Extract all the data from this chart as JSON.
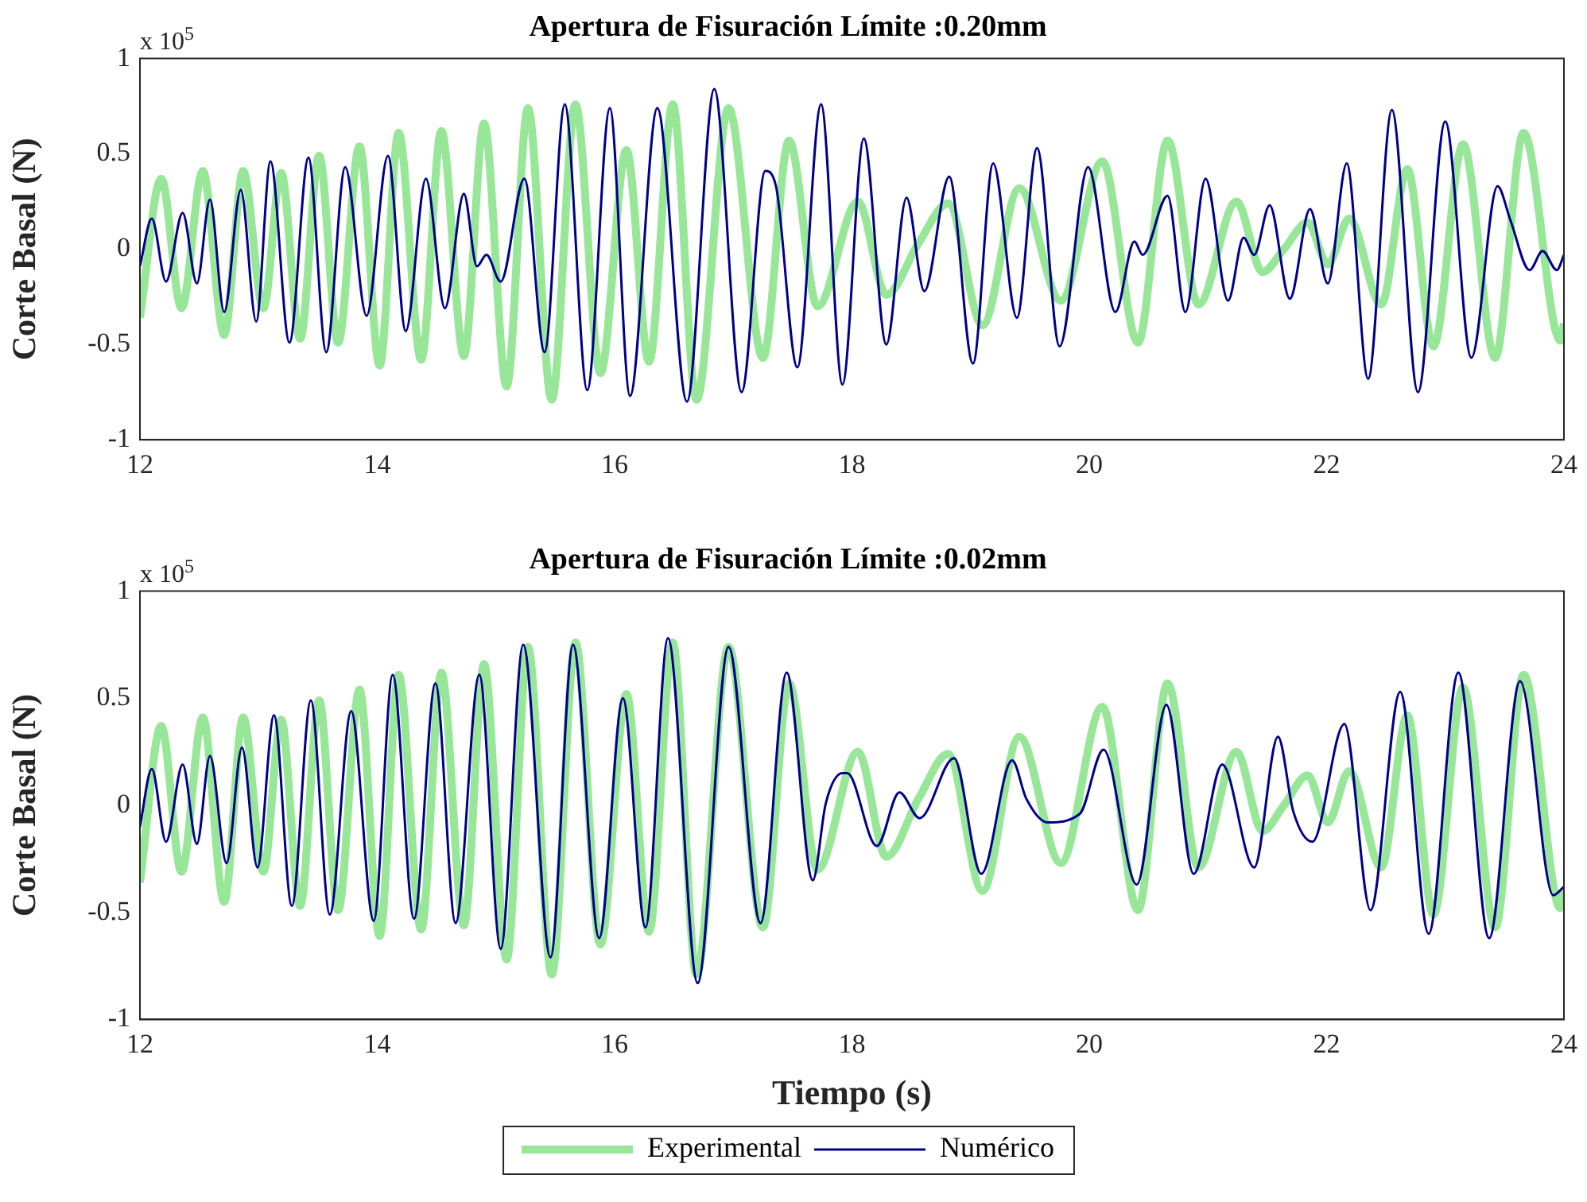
{
  "chart_data": [
    {
      "type": "line",
      "title": "Apertura de Fisuración Límite :0.20mm",
      "ylabel": "Corte Basal (N)",
      "annotations": [
        "x 10$^{5}$"
      ],
      "xlim": [
        12,
        24
      ],
      "xticks": [
        12,
        14,
        16,
        18,
        20,
        22,
        24
      ],
      "ylim": [
        -1,
        1
      ],
      "yticks": [
        -1,
        -0.5,
        0,
        0.5,
        1
      ],
      "series": [
        {
          "color": "#98e698",
          "x": [
            12.0,
            12.18,
            12.35,
            12.53,
            12.71,
            12.87,
            13.04,
            13.19,
            13.35,
            13.51,
            13.67,
            13.85,
            14.02,
            14.18,
            14.37,
            14.54,
            14.73,
            14.9,
            15.09,
            15.27,
            15.47,
            15.67,
            15.88,
            16.1,
            16.29,
            16.49,
            16.69,
            16.96,
            17.25,
            17.47,
            17.71,
            18.05,
            18.29,
            18.56,
            18.81,
            19.1,
            19.41,
            19.76,
            20.11,
            20.41,
            20.66,
            20.92,
            21.24,
            21.46,
            21.64,
            21.84,
            22.01,
            22.19,
            22.46,
            22.68,
            22.9,
            23.15,
            23.42,
            23.66,
            23.97,
            24.0
          ],
          "values": [
            -0.36,
            0.37,
            -0.31,
            0.41,
            -0.45,
            0.41,
            -0.31,
            0.4,
            -0.47,
            0.49,
            -0.49,
            0.54,
            -0.61,
            0.61,
            -0.58,
            0.62,
            -0.56,
            0.66,
            -0.72,
            0.74,
            -0.79,
            0.76,
            -0.65,
            0.52,
            -0.59,
            0.76,
            -0.79,
            0.74,
            -0.57,
            0.57,
            -0.3,
            0.25,
            -0.24,
            0.03,
            0.24,
            -0.4,
            0.32,
            -0.27,
            0.46,
            -0.49,
            0.57,
            -0.29,
            0.25,
            -0.12,
            0.0,
            0.14,
            -0.08,
            0.16,
            -0.29,
            0.42,
            -0.51,
            0.55,
            -0.57,
            0.61,
            -0.48,
            -0.39
          ]
        },
        {
          "color": "#00008b",
          "x": [
            12.0,
            12.1,
            12.22,
            12.36,
            12.48,
            12.59,
            12.71,
            12.85,
            12.98,
            13.1,
            13.26,
            13.42,
            13.57,
            13.73,
            13.91,
            14.09,
            14.24,
            14.41,
            14.57,
            14.73,
            14.84,
            14.92,
            15.04,
            15.24,
            15.41,
            15.58,
            15.77,
            15.96,
            16.13,
            16.36,
            16.61,
            16.84,
            17.07,
            17.27,
            17.36,
            17.54,
            17.74,
            17.92,
            18.1,
            18.29,
            18.46,
            18.61,
            18.82,
            19.02,
            19.19,
            19.39,
            19.56,
            19.75,
            19.99,
            20.22,
            20.38,
            20.45,
            20.66,
            20.81,
            20.98,
            21.17,
            21.3,
            21.39,
            21.52,
            21.69,
            21.86,
            22.01,
            22.17,
            22.35,
            22.55,
            22.77,
            23.0,
            23.22,
            23.44,
            23.55,
            23.71,
            23.82,
            23.94,
            24.0
          ],
          "values": [
            -0.09,
            0.16,
            -0.17,
            0.19,
            -0.18,
            0.26,
            -0.33,
            0.31,
            -0.38,
            0.46,
            -0.49,
            0.48,
            -0.54,
            0.43,
            -0.35,
            0.49,
            -0.43,
            0.37,
            -0.31,
            0.29,
            -0.09,
            -0.03,
            -0.17,
            0.37,
            -0.54,
            0.76,
            -0.74,
            0.74,
            -0.77,
            0.74,
            -0.8,
            0.84,
            -0.75,
            0.41,
            0.33,
            -0.62,
            0.76,
            -0.71,
            0.58,
            -0.5,
            0.27,
            -0.22,
            0.38,
            -0.6,
            0.45,
            -0.36,
            0.53,
            -0.51,
            0.43,
            -0.33,
            0.04,
            -0.03,
            0.28,
            -0.33,
            0.37,
            -0.27,
            0.06,
            -0.03,
            0.23,
            -0.26,
            0.21,
            -0.18,
            0.45,
            -0.68,
            0.73,
            -0.75,
            0.67,
            -0.57,
            0.33,
            0.15,
            -0.11,
            -0.01,
            -0.11,
            -0.03
          ]
        }
      ]
    },
    {
      "type": "line",
      "title": "Apertura de Fisuración Límite :0.02mm",
      "xlabel": "Tiempo (s)",
      "ylabel": "Corte Basal (N)",
      "annotations": [
        "x 10$^{5}$"
      ],
      "xlim": [
        12,
        24
      ],
      "xticks": [
        12,
        14,
        16,
        18,
        20,
        22,
        24
      ],
      "ylim": [
        -1,
        1
      ],
      "yticks": [
        -1,
        -0.5,
        0,
        0.5,
        1
      ],
      "legend": "bottom",
      "series": [
        {
          "name": "Experimental",
          "color": "#98e698",
          "x": [
            12.0,
            12.18,
            12.35,
            12.53,
            12.71,
            12.87,
            13.04,
            13.19,
            13.35,
            13.51,
            13.67,
            13.85,
            14.02,
            14.18,
            14.37,
            14.54,
            14.73,
            14.9,
            15.09,
            15.27,
            15.47,
            15.67,
            15.88,
            16.1,
            16.29,
            16.49,
            16.69,
            16.96,
            17.25,
            17.47,
            17.71,
            18.05,
            18.29,
            18.56,
            18.81,
            19.1,
            19.41,
            19.76,
            20.11,
            20.41,
            20.66,
            20.92,
            21.24,
            21.46,
            21.64,
            21.84,
            22.01,
            22.19,
            22.46,
            22.68,
            22.9,
            23.15,
            23.42,
            23.66,
            23.97,
            24.0
          ],
          "values": [
            -0.36,
            0.37,
            -0.31,
            0.41,
            -0.45,
            0.41,
            -0.31,
            0.4,
            -0.47,
            0.49,
            -0.49,
            0.54,
            -0.61,
            0.61,
            -0.58,
            0.62,
            -0.56,
            0.66,
            -0.72,
            0.74,
            -0.79,
            0.76,
            -0.65,
            0.52,
            -0.59,
            0.76,
            -0.79,
            0.74,
            -0.57,
            0.57,
            -0.3,
            0.25,
            -0.24,
            0.03,
            0.24,
            -0.4,
            0.32,
            -0.27,
            0.46,
            -0.49,
            0.57,
            -0.29,
            0.25,
            -0.12,
            0.0,
            0.14,
            -0.08,
            0.16,
            -0.29,
            0.42,
            -0.51,
            0.55,
            -0.57,
            0.61,
            -0.48,
            -0.39
          ]
        },
        {
          "name": "Numérico",
          "color": "#00008b",
          "x": [
            12.0,
            12.1,
            12.22,
            12.36,
            12.48,
            12.59,
            12.73,
            12.86,
            12.99,
            13.13,
            13.28,
            13.44,
            13.6,
            13.78,
            13.97,
            14.13,
            14.31,
            14.49,
            14.66,
            14.86,
            15.04,
            15.23,
            15.46,
            15.65,
            15.87,
            16.07,
            16.26,
            16.45,
            16.7,
            16.96,
            17.23,
            17.45,
            17.67,
            17.78,
            17.92,
            17.96,
            18.21,
            18.4,
            18.57,
            18.86,
            19.09,
            19.35,
            19.47,
            19.65,
            19.92,
            20.12,
            20.4,
            20.65,
            20.88,
            21.12,
            21.39,
            21.59,
            21.72,
            21.88,
            22.15,
            22.37,
            22.62,
            22.86,
            23.11,
            23.37,
            23.63,
            23.91,
            24.0
          ],
          "values": [
            -0.1,
            0.17,
            -0.17,
            0.19,
            -0.18,
            0.23,
            -0.27,
            0.27,
            -0.29,
            0.42,
            -0.47,
            0.49,
            -0.51,
            0.44,
            -0.54,
            0.61,
            -0.53,
            0.57,
            -0.55,
            0.61,
            -0.67,
            0.75,
            -0.71,
            0.75,
            -0.62,
            0.5,
            -0.57,
            0.78,
            -0.83,
            0.74,
            -0.55,
            0.62,
            -0.35,
            0.01,
            0.15,
            0.15,
            -0.19,
            0.06,
            -0.06,
            0.22,
            -0.32,
            0.21,
            0.03,
            -0.08,
            -0.04,
            0.26,
            -0.37,
            0.47,
            -0.32,
            0.19,
            -0.29,
            0.32,
            -0.03,
            -0.17,
            0.38,
            -0.49,
            0.53,
            -0.6,
            0.62,
            -0.62,
            0.58,
            -0.42,
            -0.38
          ]
        }
      ]
    }
  ]
}
